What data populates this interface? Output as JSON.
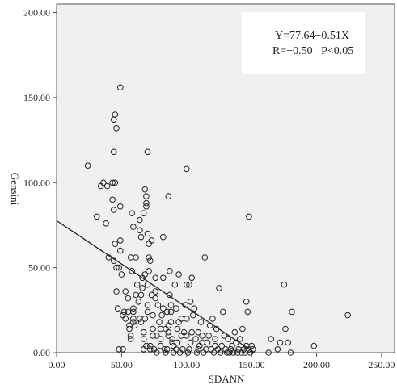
{
  "chart_data": {
    "type": "scatter",
    "xlabel": "SDANN",
    "ylabel": "Gensini",
    "xlim": [
      0,
      260
    ],
    "ylim": [
      0,
      205
    ],
    "xticks": [
      "0.00",
      "50.00",
      "100.00",
      "150.00",
      "200.00",
      "250.00"
    ],
    "yticks": [
      "0.00",
      "50.00",
      "100.00",
      "150.00",
      "200.00"
    ],
    "grid": false,
    "annotation": {
      "line1": "Y=77.64−0.51X",
      "line2": "R=−0.50   P<0.05"
    },
    "fit_line": {
      "intercept": 77.64,
      "slope": -0.51,
      "x_range": [
        0,
        152.2
      ]
    },
    "points": [
      [
        24,
        110
      ],
      [
        31,
        80
      ],
      [
        34,
        98
      ],
      [
        36,
        100
      ],
      [
        38,
        76
      ],
      [
        39,
        98
      ],
      [
        40,
        56
      ],
      [
        43,
        100
      ],
      [
        43,
        90
      ],
      [
        44,
        54
      ],
      [
        44,
        137
      ],
      [
        44,
        118
      ],
      [
        44,
        84
      ],
      [
        45,
        140
      ],
      [
        45,
        64
      ],
      [
        45,
        100
      ],
      [
        46,
        132
      ],
      [
        46,
        50
      ],
      [
        46,
        36
      ],
      [
        47,
        26
      ],
      [
        48,
        50
      ],
      [
        48,
        2
      ],
      [
        49,
        156
      ],
      [
        49,
        66
      ],
      [
        49,
        60
      ],
      [
        49,
        86
      ],
      [
        50,
        46
      ],
      [
        51,
        22
      ],
      [
        51,
        2
      ],
      [
        52,
        24
      ],
      [
        53,
        36
      ],
      [
        53,
        20
      ],
      [
        55,
        32
      ],
      [
        55,
        24
      ],
      [
        56,
        16
      ],
      [
        56,
        14
      ],
      [
        57,
        10
      ],
      [
        57,
        8
      ],
      [
        57,
        56
      ],
      [
        58,
        48
      ],
      [
        58,
        82
      ],
      [
        59,
        74
      ],
      [
        59,
        26
      ],
      [
        59,
        24
      ],
      [
        59,
        18
      ],
      [
        59,
        20
      ],
      [
        60,
        16
      ],
      [
        61,
        56
      ],
      [
        61,
        34
      ],
      [
        62,
        40
      ],
      [
        63,
        30
      ],
      [
        64,
        20
      ],
      [
        64,
        72
      ],
      [
        64,
        78
      ],
      [
        65,
        34
      ],
      [
        65,
        18
      ],
      [
        65,
        68
      ],
      [
        66,
        44
      ],
      [
        66,
        38
      ],
      [
        67,
        12
      ],
      [
        67,
        8
      ],
      [
        67,
        2
      ],
      [
        67,
        82
      ],
      [
        68,
        46
      ],
      [
        68,
        20
      ],
      [
        68,
        96
      ],
      [
        69,
        4
      ],
      [
        69,
        88
      ],
      [
        69,
        86
      ],
      [
        69,
        92
      ],
      [
        70,
        118
      ],
      [
        70,
        70
      ],
      [
        70,
        28
      ],
      [
        70,
        40
      ],
      [
        70,
        24
      ],
      [
        71,
        56
      ],
      [
        71,
        48
      ],
      [
        71,
        64
      ],
      [
        72,
        54
      ],
      [
        72,
        4
      ],
      [
        72,
        2
      ],
      [
        73,
        34
      ],
      [
        73,
        66
      ],
      [
        74,
        22
      ],
      [
        74,
        14
      ],
      [
        74,
        10
      ],
      [
        75,
        2
      ],
      [
        76,
        44
      ],
      [
        76,
        36
      ],
      [
        76,
        32
      ],
      [
        77,
        10
      ],
      [
        77,
        0
      ],
      [
        78,
        28
      ],
      [
        79,
        18
      ],
      [
        80,
        14
      ],
      [
        80,
        8
      ],
      [
        80,
        4
      ],
      [
        81,
        22
      ],
      [
        82,
        68
      ],
      [
        82,
        44
      ],
      [
        82,
        26
      ],
      [
        83,
        2
      ],
      [
        84,
        0
      ],
      [
        84,
        14
      ],
      [
        85,
        2
      ],
      [
        85,
        24
      ],
      [
        86,
        92
      ],
      [
        86,
        16
      ],
      [
        86,
        12
      ],
      [
        86,
        10
      ],
      [
        87,
        48
      ],
      [
        87,
        34
      ],
      [
        88,
        28
      ],
      [
        88,
        24
      ],
      [
        88,
        18
      ],
      [
        89,
        8
      ],
      [
        89,
        6
      ],
      [
        90,
        0
      ],
      [
        90,
        4
      ],
      [
        91,
        40
      ],
      [
        92,
        26
      ],
      [
        92,
        2
      ],
      [
        93,
        6
      ],
      [
        93,
        14
      ],
      [
        94,
        46
      ],
      [
        94,
        18
      ],
      [
        95,
        0
      ],
      [
        96,
        20
      ],
      [
        96,
        10
      ],
      [
        97,
        2
      ],
      [
        98,
        12
      ],
      [
        99,
        28
      ],
      [
        100,
        108
      ],
      [
        100,
        40
      ],
      [
        100,
        20
      ],
      [
        100,
        10
      ],
      [
        101,
        0
      ],
      [
        102,
        2
      ],
      [
        102,
        40
      ],
      [
        103,
        6
      ],
      [
        103,
        30
      ],
      [
        104,
        12
      ],
      [
        104,
        44
      ],
      [
        105,
        22
      ],
      [
        106,
        26
      ],
      [
        107,
        8
      ],
      [
        108,
        0
      ],
      [
        109,
        2
      ],
      [
        109,
        12
      ],
      [
        110,
        4
      ],
      [
        111,
        18
      ],
      [
        112,
        6
      ],
      [
        112,
        10
      ],
      [
        113,
        0
      ],
      [
        114,
        56
      ],
      [
        115,
        2
      ],
      [
        116,
        6
      ],
      [
        117,
        10
      ],
      [
        118,
        16
      ],
      [
        119,
        2
      ],
      [
        120,
        20
      ],
      [
        121,
        0
      ],
      [
        122,
        4
      ],
      [
        122,
        8
      ],
      [
        123,
        14
      ],
      [
        124,
        2
      ],
      [
        125,
        38
      ],
      [
        126,
        0
      ],
      [
        127,
        4
      ],
      [
        128,
        24
      ],
      [
        129,
        10
      ],
      [
        130,
        2
      ],
      [
        131,
        0
      ],
      [
        132,
        8
      ],
      [
        133,
        0
      ],
      [
        134,
        2
      ],
      [
        135,
        4
      ],
      [
        136,
        0
      ],
      [
        137,
        12
      ],
      [
        138,
        6
      ],
      [
        139,
        0
      ],
      [
        140,
        2
      ],
      [
        141,
        8
      ],
      [
        142,
        0
      ],
      [
        143,
        14
      ],
      [
        144,
        2
      ],
      [
        145,
        0
      ],
      [
        146,
        30
      ],
      [
        146,
        4
      ],
      [
        147,
        24
      ],
      [
        148,
        80
      ],
      [
        148,
        2
      ],
      [
        149,
        0
      ],
      [
        150,
        4
      ],
      [
        151,
        2
      ],
      [
        163,
        0
      ],
      [
        165,
        8
      ],
      [
        170,
        2
      ],
      [
        172,
        6
      ],
      [
        175,
        40
      ],
      [
        176,
        14
      ],
      [
        178,
        6
      ],
      [
        180,
        0
      ],
      [
        181,
        24
      ],
      [
        198,
        4
      ],
      [
        224,
        22
      ]
    ]
  }
}
